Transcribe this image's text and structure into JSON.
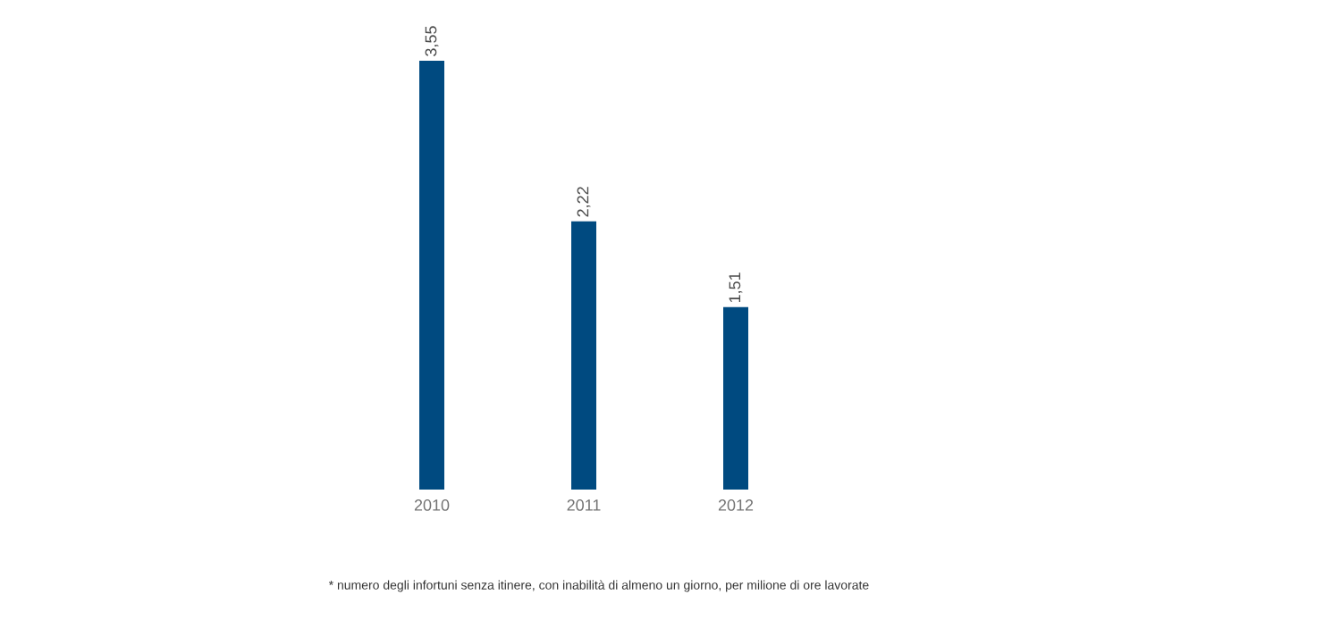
{
  "chart_data": {
    "type": "bar",
    "categories": [
      "2010",
      "2011",
      "2012"
    ],
    "values": [
      3.55,
      2.22,
      1.51
    ],
    "value_labels": [
      "3,55",
      "2,22",
      "1,51"
    ],
    "color": "#004a80",
    "annotations": [
      "* numero degli infortuni senza itinere, con inabilità di almeno un giorno, per milione di ore lavorate"
    ]
  }
}
